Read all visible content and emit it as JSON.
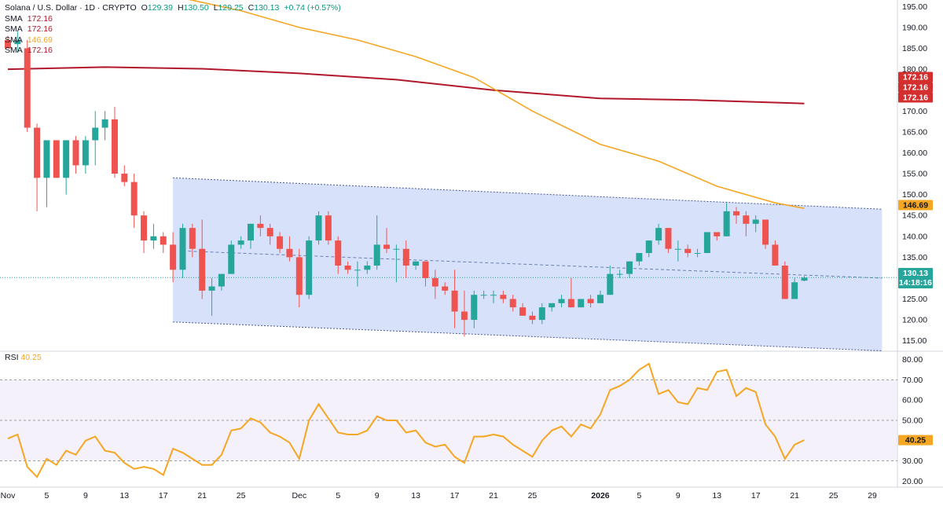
{
  "header": {
    "symbol": "Solana / U.S. Dollar · 1D · CRYPTO",
    "open_label": "O",
    "open": "129.39",
    "high_label": "H",
    "high": "130.50",
    "low_label": "L",
    "low": "129.25",
    "close_label": "C",
    "close": "130.13",
    "change": "+0.74 (+0.57%)"
  },
  "indicators": [
    {
      "label": "SMA",
      "value": "172.16"
    },
    {
      "label": "SMA",
      "value": "172.16"
    },
    {
      "label": "SMA",
      "value": "146.69"
    },
    {
      "label": "SMA",
      "value": "172.16"
    }
  ],
  "rsi": {
    "label": "RSI",
    "value": "40.25"
  },
  "price_tags": {
    "sma_1": "172.16",
    "sma_2": "172.16",
    "sma_3": "172.16",
    "sma_fast": "146.69",
    "last": "130.13",
    "countdown": "14:18:16",
    "rsi": "40.25"
  },
  "colors": {
    "up": "#26a69a",
    "down": "#ef5350",
    "sma_long": "#b2182b",
    "sma_fast": "#f5a623",
    "rsi": "#f5a623",
    "channel": "#c9d8f8"
  },
  "chart_data": [
    {
      "type": "candlestick",
      "x_axis": {
        "ticks": [
          {
            "label": "Nov",
            "date": "2025-11-01"
          },
          {
            "label": "5",
            "date": "2025-11-05"
          },
          {
            "label": "9",
            "date": "2025-11-09"
          },
          {
            "label": "13",
            "date": "2025-11-13"
          },
          {
            "label": "17",
            "date": "2025-11-17"
          },
          {
            "label": "21",
            "date": "2025-11-21"
          },
          {
            "label": "25",
            "date": "2025-11-25"
          },
          {
            "label": "Dec",
            "date": "2025-12-01"
          },
          {
            "label": "5",
            "date": "2025-12-05"
          },
          {
            "label": "9",
            "date": "2025-12-09"
          },
          {
            "label": "13",
            "date": "2025-12-13"
          },
          {
            "label": "17",
            "date": "2025-12-17"
          },
          {
            "label": "21",
            "date": "2025-12-21"
          },
          {
            "label": "25",
            "date": "2025-12-25"
          },
          {
            "label": "2026",
            "date": "2026-01-01"
          },
          {
            "label": "5",
            "date": "2026-01-05"
          },
          {
            "label": "9",
            "date": "2026-01-09"
          },
          {
            "label": "13",
            "date": "2026-01-13"
          },
          {
            "label": "17",
            "date": "2026-01-17"
          },
          {
            "label": "21",
            "date": "2026-01-21"
          },
          {
            "label": "25",
            "date": "2026-01-25"
          },
          {
            "label": "29",
            "date": "2026-01-29"
          }
        ]
      },
      "y_axis": {
        "ticks": [
          195,
          190,
          185,
          180,
          175,
          170,
          165,
          160,
          155,
          150,
          145,
          140,
          135,
          130,
          125,
          120,
          115
        ],
        "ylim": [
          112.5,
          196
        ]
      },
      "candles": [
        [
          "2025-11-01",
          187,
          188,
          185,
          185
        ],
        [
          "2025-11-02",
          186,
          189,
          184,
          187
        ],
        [
          "2025-11-03",
          185,
          187,
          165,
          166
        ],
        [
          "2025-11-04",
          166,
          167,
          146,
          154
        ],
        [
          "2025-11-05",
          154,
          163,
          147,
          163
        ],
        [
          "2025-11-06",
          163,
          163,
          154,
          154
        ],
        [
          "2025-11-07",
          154,
          163,
          150,
          163
        ],
        [
          "2025-11-08",
          163,
          164,
          155,
          157
        ],
        [
          "2025-11-09",
          157,
          164,
          155,
          163
        ],
        [
          "2025-11-10",
          163,
          170,
          157,
          166
        ],
        [
          "2025-11-11",
          166,
          170,
          163,
          168
        ],
        [
          "2025-11-12",
          168,
          171,
          154,
          155
        ],
        [
          "2025-11-13",
          155,
          157,
          152,
          153
        ],
        [
          "2025-11-14",
          153,
          155,
          142,
          145
        ],
        [
          "2025-11-15",
          145,
          146,
          136,
          139
        ],
        [
          "2025-11-16",
          139,
          143,
          137,
          140
        ],
        [
          "2025-11-17",
          140,
          141,
          136,
          138
        ],
        [
          "2025-11-18",
          138,
          141,
          129,
          132
        ],
        [
          "2025-11-19",
          132,
          143,
          130,
          142
        ],
        [
          "2025-11-20",
          142,
          143,
          135,
          137
        ],
        [
          "2025-11-21",
          137,
          144,
          125,
          127
        ],
        [
          "2025-11-22",
          127,
          130,
          121,
          128
        ],
        [
          "2025-11-23",
          128,
          131,
          127,
          131
        ],
        [
          "2025-11-24",
          131,
          139,
          131,
          138
        ],
        [
          "2025-11-25",
          138,
          140,
          137,
          139
        ],
        [
          "2025-11-26",
          139,
          143,
          137,
          143
        ],
        [
          "2025-11-27",
          143,
          145,
          140,
          142
        ],
        [
          "2025-11-28",
          142,
          143,
          138,
          140
        ],
        [
          "2025-11-29",
          140,
          141,
          136,
          137
        ],
        [
          "2025-11-30",
          137,
          140,
          134,
          135
        ],
        [
          "2025-12-01",
          135,
          137,
          123,
          126
        ],
        [
          "2025-12-02",
          126,
          140,
          125,
          139
        ],
        [
          "2025-12-03",
          139,
          146,
          138,
          145
        ],
        [
          "2025-12-04",
          145,
          146,
          138,
          139
        ],
        [
          "2025-12-05",
          139,
          140,
          131,
          133
        ],
        [
          "2025-12-06",
          133,
          134,
          131,
          132
        ],
        [
          "2025-12-07",
          132,
          134,
          128,
          132
        ],
        [
          "2025-12-08",
          132,
          134,
          131,
          133
        ],
        [
          "2025-12-09",
          133,
          145,
          132,
          138
        ],
        [
          "2025-12-10",
          138,
          142,
          136,
          137
        ],
        [
          "2025-12-11",
          137,
          138,
          129,
          137
        ],
        [
          "2025-12-12",
          137,
          139,
          130,
          133
        ],
        [
          "2025-12-13",
          133,
          134,
          132,
          134
        ],
        [
          "2025-12-14",
          134,
          134,
          128,
          130
        ],
        [
          "2025-12-15",
          130,
          132,
          125,
          128
        ],
        [
          "2025-12-16",
          128,
          129,
          126,
          127
        ],
        [
          "2025-12-17",
          127,
          132,
          118,
          122
        ],
        [
          "2025-12-18",
          122,
          127,
          116,
          120
        ],
        [
          "2025-12-19",
          120,
          127,
          118,
          126
        ],
        [
          "2025-12-20",
          126,
          127,
          125,
          126
        ],
        [
          "2025-12-21",
          126,
          127,
          124,
          126
        ],
        [
          "2025-12-22",
          126,
          127,
          124,
          125
        ],
        [
          "2025-12-23",
          125,
          126,
          122,
          123
        ],
        [
          "2025-12-24",
          123,
          124,
          121,
          121
        ],
        [
          "2025-12-25",
          121,
          122,
          119,
          120
        ],
        [
          "2025-12-26",
          120,
          124,
          119,
          123
        ],
        [
          "2025-12-27",
          123,
          124,
          122,
          124
        ],
        [
          "2025-12-28",
          124,
          126,
          123,
          125
        ],
        [
          "2025-12-29",
          125,
          130,
          123,
          123
        ],
        [
          "2025-12-30",
          123,
          125,
          123,
          125
        ],
        [
          "2025-12-31",
          125,
          126,
          123,
          124
        ],
        [
          "2026-01-01",
          124,
          127,
          124,
          126
        ],
        [
          "2026-01-02",
          126,
          133,
          126,
          131
        ],
        [
          "2026-01-03",
          131,
          132,
          130,
          131
        ],
        [
          "2026-01-04",
          131,
          134,
          130,
          134
        ],
        [
          "2026-01-05",
          134,
          136,
          133,
          136
        ],
        [
          "2026-01-06",
          136,
          139,
          135,
          139
        ],
        [
          "2026-01-07",
          139,
          143,
          138,
          142
        ],
        [
          "2026-01-08",
          142,
          142,
          136,
          137
        ],
        [
          "2026-01-09",
          137,
          139,
          134,
          137
        ],
        [
          "2026-01-10",
          137,
          138,
          135,
          136
        ],
        [
          "2026-01-11",
          136,
          137,
          135,
          136
        ],
        [
          "2026-01-12",
          136,
          141,
          136,
          141
        ],
        [
          "2026-01-13",
          141,
          141,
          139,
          140
        ],
        [
          "2026-01-14",
          140,
          148,
          140,
          146
        ],
        [
          "2026-01-15",
          146,
          147,
          143,
          145
        ],
        [
          "2026-01-16",
          145,
          146,
          140,
          143
        ],
        [
          "2026-01-17",
          143,
          145,
          141,
          144
        ],
        [
          "2026-01-18",
          144,
          144,
          137,
          138
        ],
        [
          "2026-01-19",
          138,
          139,
          133,
          133
        ],
        [
          "2026-01-20",
          133,
          134,
          125,
          125
        ],
        [
          "2026-01-21",
          125,
          130,
          125,
          129
        ],
        [
          "2026-01-22",
          129.39,
          130.5,
          129.25,
          130.13
        ]
      ],
      "sma_long": [
        [
          "2025-11-01",
          180
        ],
        [
          "2025-11-11",
          180.5
        ],
        [
          "2025-11-21",
          180.1
        ],
        [
          "2025-12-01",
          179
        ],
        [
          "2025-12-11",
          177.5
        ],
        [
          "2025-12-21",
          175
        ],
        [
          "2026-01-01",
          173
        ],
        [
          "2026-01-11",
          172.6
        ],
        [
          "2026-01-22",
          171.8
        ]
      ],
      "sma_fast": [
        [
          "2025-11-19",
          197
        ],
        [
          "2025-11-25",
          194
        ],
        [
          "2025-12-01",
          190
        ],
        [
          "2025-12-07",
          187
        ],
        [
          "2025-12-13",
          183
        ],
        [
          "2025-12-19",
          178
        ],
        [
          "2025-12-25",
          170
        ],
        [
          "2026-01-01",
          162
        ],
        [
          "2026-01-07",
          158
        ],
        [
          "2026-01-13",
          152
        ],
        [
          "2026-01-19",
          148
        ],
        [
          "2026-01-22",
          146.69
        ]
      ],
      "channel": {
        "upper": [
          [
            "2025-11-18",
            154
          ],
          [
            "2026-01-30",
            146.5
          ]
        ],
        "lower": [
          [
            "2025-11-18",
            119.5
          ],
          [
            "2026-01-30",
            112.6
          ]
        ],
        "mid": [
          [
            "2025-11-19",
            136.5
          ],
          [
            "2026-01-30",
            130
          ]
        ]
      }
    },
    {
      "type": "line",
      "name": "RSI",
      "y_axis": {
        "ticks": [
          80,
          70,
          60,
          50,
          40,
          30,
          20
        ],
        "ylim": [
          17,
          83
        ]
      },
      "levels": [
        70,
        50,
        30
      ],
      "values": [
        [
          "2025-11-01",
          41
        ],
        [
          "2025-11-02",
          43
        ],
        [
          "2025-11-03",
          27
        ],
        [
          "2025-11-04",
          22
        ],
        [
          "2025-11-05",
          31
        ],
        [
          "2025-11-06",
          28
        ],
        [
          "2025-11-07",
          35
        ],
        [
          "2025-11-08",
          33
        ],
        [
          "2025-11-09",
          40
        ],
        [
          "2025-11-10",
          42
        ],
        [
          "2025-11-11",
          35
        ],
        [
          "2025-11-12",
          34
        ],
        [
          "2025-11-13",
          29
        ],
        [
          "2025-11-14",
          26
        ],
        [
          "2025-11-15",
          27
        ],
        [
          "2025-11-16",
          26
        ],
        [
          "2025-11-17",
          23
        ],
        [
          "2025-11-18",
          36
        ],
        [
          "2025-11-19",
          34
        ],
        [
          "2025-11-20",
          31
        ],
        [
          "2025-11-21",
          28
        ],
        [
          "2025-11-22",
          28
        ],
        [
          "2025-11-23",
          33
        ],
        [
          "2025-11-24",
          45
        ],
        [
          "2025-11-25",
          46
        ],
        [
          "2025-11-26",
          51
        ],
        [
          "2025-11-27",
          49
        ],
        [
          "2025-11-28",
          44
        ],
        [
          "2025-11-29",
          42
        ],
        [
          "2025-11-30",
          39
        ],
        [
          "2025-12-01",
          31
        ],
        [
          "2025-12-02",
          50
        ],
        [
          "2025-12-03",
          58
        ],
        [
          "2025-12-04",
          51
        ],
        [
          "2025-12-05",
          44
        ],
        [
          "2025-12-06",
          43
        ],
        [
          "2025-12-07",
          43
        ],
        [
          "2025-12-08",
          45
        ],
        [
          "2025-12-09",
          52
        ],
        [
          "2025-12-10",
          50
        ],
        [
          "2025-12-11",
          50
        ],
        [
          "2025-12-12",
          44
        ],
        [
          "2025-12-13",
          45
        ],
        [
          "2025-12-14",
          39
        ],
        [
          "2025-12-15",
          37
        ],
        [
          "2025-12-16",
          38
        ],
        [
          "2025-12-17",
          32
        ],
        [
          "2025-12-18",
          29
        ],
        [
          "2025-12-19",
          42
        ],
        [
          "2025-12-20",
          42
        ],
        [
          "2025-12-21",
          43
        ],
        [
          "2025-12-22",
          42
        ],
        [
          "2025-12-23",
          38
        ],
        [
          "2025-12-24",
          35
        ],
        [
          "2025-12-25",
          32
        ],
        [
          "2025-12-26",
          40
        ],
        [
          "2025-12-27",
          45
        ],
        [
          "2025-12-28",
          47
        ],
        [
          "2025-12-29",
          42
        ],
        [
          "2025-12-30",
          48
        ],
        [
          "2025-12-31",
          46
        ],
        [
          "2026-01-01",
          53
        ],
        [
          "2026-01-02",
          65
        ],
        [
          "2026-01-03",
          67
        ],
        [
          "2026-01-04",
          70
        ],
        [
          "2026-01-05",
          75
        ],
        [
          "2026-01-06",
          78
        ],
        [
          "2026-01-07",
          63
        ],
        [
          "2026-01-08",
          65
        ],
        [
          "2026-01-09",
          59
        ],
        [
          "2026-01-10",
          58
        ],
        [
          "2026-01-11",
          66
        ],
        [
          "2026-01-12",
          65
        ],
        [
          "2026-01-13",
          74
        ],
        [
          "2026-01-14",
          75
        ],
        [
          "2026-01-15",
          62
        ],
        [
          "2026-01-16",
          66
        ],
        [
          "2026-01-17",
          64
        ],
        [
          "2026-01-18",
          48
        ],
        [
          "2026-01-19",
          42
        ],
        [
          "2026-01-20",
          31
        ],
        [
          "2026-01-21",
          38
        ],
        [
          "2026-01-22",
          40.25
        ]
      ]
    }
  ]
}
